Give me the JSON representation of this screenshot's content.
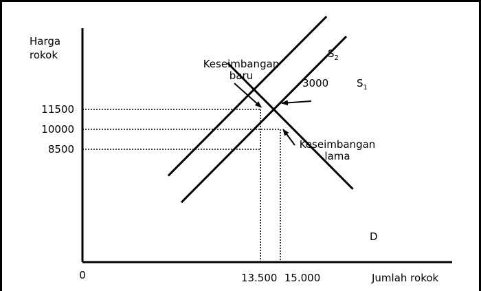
{
  "chart_data": {
    "type": "line",
    "ylabel": [
      "Harga",
      "rokok"
    ],
    "xlabel": "Jumlah  rokok",
    "origin": "0",
    "y_ticks": [
      {
        "value": 11500,
        "label": "11500"
      },
      {
        "value": 10000,
        "label": "10000"
      },
      {
        "value": 8500,
        "label": "8500"
      }
    ],
    "x_ticks": [
      {
        "value": 13500,
        "label": "13.500"
      },
      {
        "value": 15000,
        "label": "15.000"
      }
    ],
    "series": [
      {
        "name": "D",
        "points": [
          [
            11000,
            15000
          ],
          [
            20500,
            5500
          ]
        ]
      },
      {
        "name": "S2",
        "name_main": "S",
        "name_sub": "2",
        "points": [
          [
            6500,
            6500
          ],
          [
            18500,
            18500
          ]
        ]
      },
      {
        "name": "S1",
        "name_main": "S",
        "name_sub": "1",
        "points": [
          [
            7500,
            4500
          ],
          [
            20000,
            17000
          ]
        ]
      }
    ],
    "equilibria": [
      {
        "name": "Keseimbangan baru",
        "label_lines": [
          "Keseimbangan",
          "baru"
        ],
        "x": 13500,
        "y": 11500
      },
      {
        "name": "Keseimbangan lama",
        "label_lines": [
          "Keseimbangan",
          "lama"
        ],
        "x": 15000,
        "y": 10000
      }
    ],
    "dotted_guides": [
      {
        "from": [
          0,
          11500
        ],
        "to": [
          13500,
          11500
        ]
      },
      {
        "from": [
          0,
          10000
        ],
        "to": [
          15000,
          10000
        ]
      },
      {
        "from": [
          0,
          8500
        ],
        "to": [
          13500,
          8500
        ]
      },
      {
        "from": [
          13500,
          11500
        ],
        "to": [
          13500,
          0
        ]
      },
      {
        "from": [
          15000,
          10000
        ],
        "to": [
          15000,
          0
        ]
      }
    ],
    "annotations": [
      {
        "text": "3000",
        "meaning": "supply shift"
      }
    ],
    "grid": false,
    "legend": "none"
  }
}
